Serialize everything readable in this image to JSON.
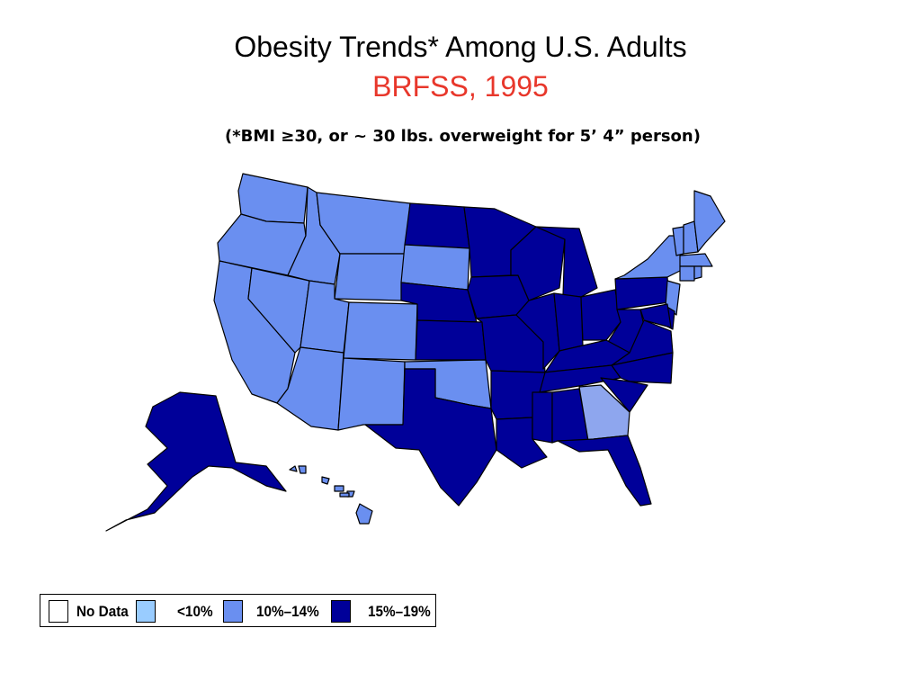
{
  "title": "Obesity Trends* Among U.S. Adults",
  "subtitle": "BRFSS, 1995",
  "note": "(*BMI ≥30, or ~ 30 lbs. overweight for 5’ 4” person)",
  "colors": {
    "title": "#000000",
    "subtitle": "#e8372b",
    "no_data": "#ffffff",
    "lt10": "#99ccff",
    "c10_14": "#6a8ff0",
    "c15_19": "#000099",
    "gray_blue": "#8ea6ee"
  },
  "legend": [
    {
      "key": "no_data",
      "label": "No Data"
    },
    {
      "key": "lt10",
      "label": "<10%"
    },
    {
      "key": "c10_14",
      "label": "10%–14%"
    },
    {
      "key": "c15_19",
      "label": "15%–19%"
    }
  ],
  "chart_data": {
    "type": "choropleth",
    "year": 1995,
    "categories": [
      "No Data",
      "<10%",
      "10%–14%",
      "15%–19%"
    ],
    "states": {
      "WA": "10%–14%",
      "OR": "10%–14%",
      "CA": "10%–14%",
      "NV": "10%–14%",
      "ID": "10%–14%",
      "MT": "10%–14%",
      "WY": "10%–14%",
      "UT": "10%–14%",
      "AZ": "10%–14%",
      "CO": "10%–14%",
      "NM": "10%–14%",
      "SD": "10%–14%",
      "OK": "10%–14%",
      "GA": "10%–14%",
      "NY": "10%–14%",
      "VT": "10%–14%",
      "NH": "10%–14%",
      "ME": "10%–14%",
      "MA": "10%–14%",
      "CT": "10%–14%",
      "RI": "10%–14%",
      "NJ": "10%–14%",
      "HI": "10%–14%",
      "ND": "15%–19%",
      "MN": "15%–19%",
      "WI": "15%–19%",
      "MI": "15%–19%",
      "NE": "15%–19%",
      "KS": "15%–19%",
      "IA": "15%–19%",
      "MO": "15%–19%",
      "IL": "15%–19%",
      "IN": "15%–19%",
      "OH": "15%–19%",
      "PA": "15%–19%",
      "WV": "15%–19%",
      "VA": "15%–19%",
      "MD": "15%–19%",
      "DE": "15%–19%",
      "KY": "15%–19%",
      "TN": "15%–19%",
      "NC": "15%–19%",
      "SC": "15%–19%",
      "AR": "15%–19%",
      "LA": "15%–19%",
      "MS": "15%–19%",
      "AL": "15%–19%",
      "FL": "15%–19%",
      "TX": "15%–19%",
      "AK": "15%–19%"
    }
  }
}
